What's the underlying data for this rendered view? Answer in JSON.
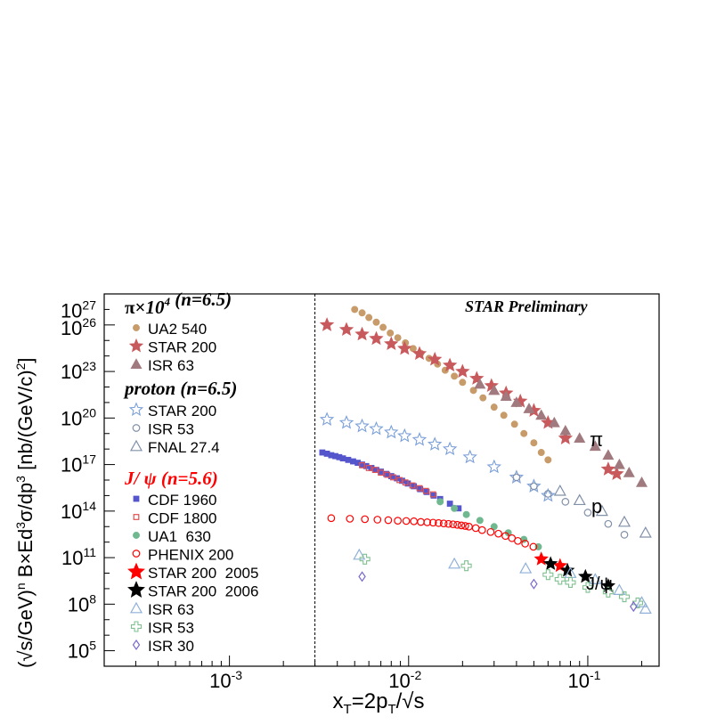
{
  "chart_data": {
    "type": "scatter",
    "annotation": "STAR Preliminary",
    "xlabel": "x_T=2p_T/√s",
    "ylabel": "(√s/GeV)^n B×Ed^3σ/dp^3 [nb/(GeV/c)^2]",
    "x_scale": "log",
    "y_scale": "log",
    "xlim": [
      0.0002,
      0.25
    ],
    "ylim": [
      10000,
      1e+28
    ],
    "x_ticks": [
      "10^-3",
      "10^-2",
      "10^-1"
    ],
    "y_ticks": [
      "10^5",
      "10^8",
      "10^11",
      "10^14",
      "10^17",
      "10^20",
      "10^23",
      "10^26",
      "10^27"
    ],
    "reference_line_x": 0.003,
    "curve_labels": [
      "π",
      "p",
      "J/ψ"
    ],
    "legend_groups": [
      {
        "title": "π×10⁴ (n=6.5)",
        "color": "#000000"
      },
      {
        "title": "proton (n=6.5)",
        "color": "#000000"
      },
      {
        "title": "J/ ψ (n=5.6)",
        "color": "#ff0000"
      }
    ],
    "series": [
      {
        "name": "UA2 540",
        "marker": "circle-filled",
        "color": "#c89b6a",
        "x": [
          0.005,
          0.0055,
          0.006,
          0.0066,
          0.0072,
          0.0079,
          0.0087,
          0.0096,
          0.0106,
          0.0117,
          0.013,
          0.0145,
          0.016,
          0.018,
          0.02,
          0.023,
          0.026,
          0.03,
          0.034,
          0.039,
          0.044,
          0.05,
          0.055,
          0.06
        ],
        "y": [
          1e+27,
          6e+26,
          3e+26,
          1.5e+26,
          7e+25,
          3e+25,
          1.5e+25,
          7e+24,
          3e+24,
          1.5e+24,
          7e+23,
          3e+23,
          1.2e+23,
          5e+22,
          2e+22,
          6e+21,
          2e+21,
          5e+20,
          1.5e+20,
          4e+19,
          1e+19,
          2.5e+18,
          6e+17,
          2e+17
        ]
      },
      {
        "name": "STAR 200",
        "marker": "star-filled",
        "color": "#c8595c",
        "x": [
          0.0035,
          0.0045,
          0.0055,
          0.0066,
          0.008,
          0.0095,
          0.0115,
          0.014,
          0.017,
          0.02,
          0.024,
          0.029,
          0.035,
          0.042,
          0.05,
          0.06,
          0.075,
          0.13,
          0.145
        ],
        "y": [
          1e+26,
          5e+25,
          2.5e+25,
          1.3e+25,
          6e+24,
          3e+24,
          1.4e+24,
          6e+23,
          2.5e+23,
          1e+23,
          3.5e+22,
          1.2e+22,
          4e+21,
          1.2e+21,
          3e+20,
          5e+19,
          5e+18,
          5e+16,
          2.5e+16
        ]
      },
      {
        "name": "ISR 63",
        "marker": "triangle-filled",
        "color": "#a07a7e",
        "x": [
          0.025,
          0.03,
          0.035,
          0.04,
          0.047,
          0.055,
          0.065,
          0.075,
          0.09,
          0.11,
          0.13,
          0.15,
          0.17,
          0.2
        ],
        "y": [
          1.5e+22,
          6e+21,
          2.5e+21,
          1e+21,
          4e+20,
          1.5e+20,
          5e+19,
          1.5e+19,
          5e+18,
          1.5e+18,
          4e+17,
          1e+17,
          3e+16,
          7000000000000000.0
        ]
      },
      {
        "name": "STAR 200",
        "marker": "star-open",
        "color": "#7b9fd8",
        "x": [
          0.0035,
          0.0045,
          0.0055,
          0.0066,
          0.008,
          0.0095,
          0.0115,
          0.014,
          0.017,
          0.022,
          0.03,
          0.04,
          0.05,
          0.06
        ],
        "y": [
          8e+19,
          5e+19,
          3e+19,
          2e+19,
          1.2e+19,
          7e+18,
          4e+18,
          2e+18,
          1e+18,
          3e+17,
          7e+16,
          1.5e+16,
          4000000000000000.0,
          1000000000000000.0
        ]
      },
      {
        "name": "ISR 53",
        "marker": "circle-open",
        "color": "#8090a8",
        "x": [
          0.04,
          0.05,
          0.06,
          0.075,
          0.1,
          0.13,
          0.16
        ],
        "y": [
          1.5e+16,
          4000000000000000.0,
          1300000000000000.0,
          400000000000000.0,
          80000000000000.0,
          15000000000000.0,
          3000000000000.0
        ]
      },
      {
        "name": "FNAL 27.4",
        "marker": "triangle-open",
        "color": "#8090a8",
        "x": [
          0.07,
          0.09,
          0.12,
          0.16,
          0.21
        ],
        "y": [
          2000000000000000.0,
          500000000000000.0,
          100000000000000.0,
          20000000000000.0,
          4000000000000.0
        ]
      },
      {
        "name": "CDF 1960",
        "marker": "square-filled",
        "color": "#5555cc",
        "x": [
          0.0033,
          0.0035,
          0.0037,
          0.0039,
          0.0041,
          0.0043,
          0.0046,
          0.0049,
          0.0052,
          0.0055,
          0.0058,
          0.0062,
          0.0066,
          0.007,
          0.0075,
          0.008,
          0.0086,
          0.0092,
          0.0099,
          0.0107,
          0.0116,
          0.0126,
          0.0138,
          0.015,
          0.017,
          0.019
        ],
        "y": [
          6e+17,
          5e+17,
          4e+17,
          3.5e+17,
          3e+17,
          2.5e+17,
          2e+17,
          1.6e+17,
          1.3e+17,
          1e+17,
          8e+16,
          6e+16,
          4.5e+16,
          3.5e+16,
          2.5e+16,
          1.8e+16,
          1.3e+16,
          9000000000000000.0,
          6000000000000000.0,
          4000000000000000.0,
          2600000000000000.0,
          1700000000000000.0,
          1000000000000000.0,
          600000000000000.0,
          300000000000000.0,
          150000000000000.0
        ]
      },
      {
        "name": "CDF 1800",
        "marker": "square-open",
        "color": "#e05050",
        "x": [
          0.0055,
          0.006,
          0.0065,
          0.007,
          0.0076,
          0.0082,
          0.0089,
          0.0096,
          0.0105,
          0.0115,
          0.0125,
          0.0137
        ],
        "y": [
          9e+16,
          6e+16,
          4.5e+16,
          3e+16,
          2.2e+16,
          1.5e+16,
          1e+16,
          7000000000000000.0,
          4500000000000000.0,
          3000000000000000.0,
          2000000000000000.0,
          1200000000000000.0
        ]
      },
      {
        "name": "UA1  630",
        "marker": "circle-filled",
        "color": "#70b890",
        "x": [
          0.015,
          0.018,
          0.021,
          0.025,
          0.03,
          0.036,
          0.044,
          0.053
        ],
        "y": [
          400000000000000.0,
          150000000000000.0,
          60000000000000.0,
          25000000000000.0,
          10000000000000.0,
          4000000000000.0,
          1500000000000.0,
          500000000000.0
        ]
      },
      {
        "name": "PHENIX 200",
        "marker": "circle-open",
        "color": "#ff0000",
        "x": [
          0.0037,
          0.0047,
          0.0057,
          0.0067,
          0.0077,
          0.0087,
          0.0097,
          0.0107,
          0.0117,
          0.0127,
          0.0137,
          0.0147,
          0.0157,
          0.0167,
          0.0177,
          0.0187,
          0.0197,
          0.0207,
          0.0217,
          0.0237,
          0.0257,
          0.0287,
          0.0317,
          0.0347,
          0.0377,
          0.0407,
          0.0447,
          0.0497
        ],
        "y": [
          35000000000000.0,
          32000000000000.0,
          30000000000000.0,
          28000000000000.0,
          26000000000000.0,
          24000000000000.0,
          23000000000000.0,
          22000000000000.0,
          20000000000000.0,
          19000000000000.0,
          18000000000000.0,
          17000000000000.0,
          16000000000000.0,
          15000000000000.0,
          14000000000000.0,
          13000000000000.0,
          12000000000000.0,
          11000000000000.0,
          10000000000000.0,
          8000000000000.0,
          6000000000000.0,
          4500000000000.0,
          3500000000000.0,
          2500000000000.0,
          1800000000000.0,
          1200000000000.0,
          800000000000.0,
          500000000000.0
        ]
      },
      {
        "name": "STAR 200  2005",
        "marker": "star-filled",
        "color": "#ff0000",
        "x": [
          0.055,
          0.07
        ],
        "y": [
          80000000000.0,
          30000000000.0
        ]
      },
      {
        "name": "STAR 200  2006",
        "marker": "star-filled",
        "color": "#000000",
        "x": [
          0.062,
          0.077,
          0.097,
          0.13
        ],
        "y": [
          40000000000.0,
          15000000000.0,
          6000000000.0,
          1500000000.0
        ]
      },
      {
        "name": "ISR 63",
        "marker": "triangle-open",
        "color": "#8fb0d8",
        "x": [
          0.0053,
          0.018,
          0.045,
          0.08,
          0.11,
          0.15,
          0.2,
          0.21
        ],
        "y": [
          150000000000.0,
          40000000000.0,
          20000000000.0,
          10000000000.0,
          4000000000.0,
          800000000.0,
          130000000.0,
          50000000.0
        ]
      },
      {
        "name": "ISR 53",
        "marker": "cross-open",
        "color": "#80c090",
        "x": [
          0.0057,
          0.021,
          0.06,
          0.07,
          0.08,
          0.1,
          0.13,
          0.16,
          0.19
        ],
        "y": [
          80000000000.0,
          30000000000.0,
          8000000000.0,
          4000000000.0,
          2500000000.0,
          1200000000.0,
          600000000.0,
          300000000.0,
          120000000.0
        ]
      },
      {
        "name": "ISR 30",
        "marker": "diamond-open",
        "color": "#7a6acc",
        "x": [
          0.0055,
          0.05,
          0.18
        ],
        "y": [
          6000000000.0,
          2000000000.0,
          70000000.0
        ]
      }
    ]
  }
}
